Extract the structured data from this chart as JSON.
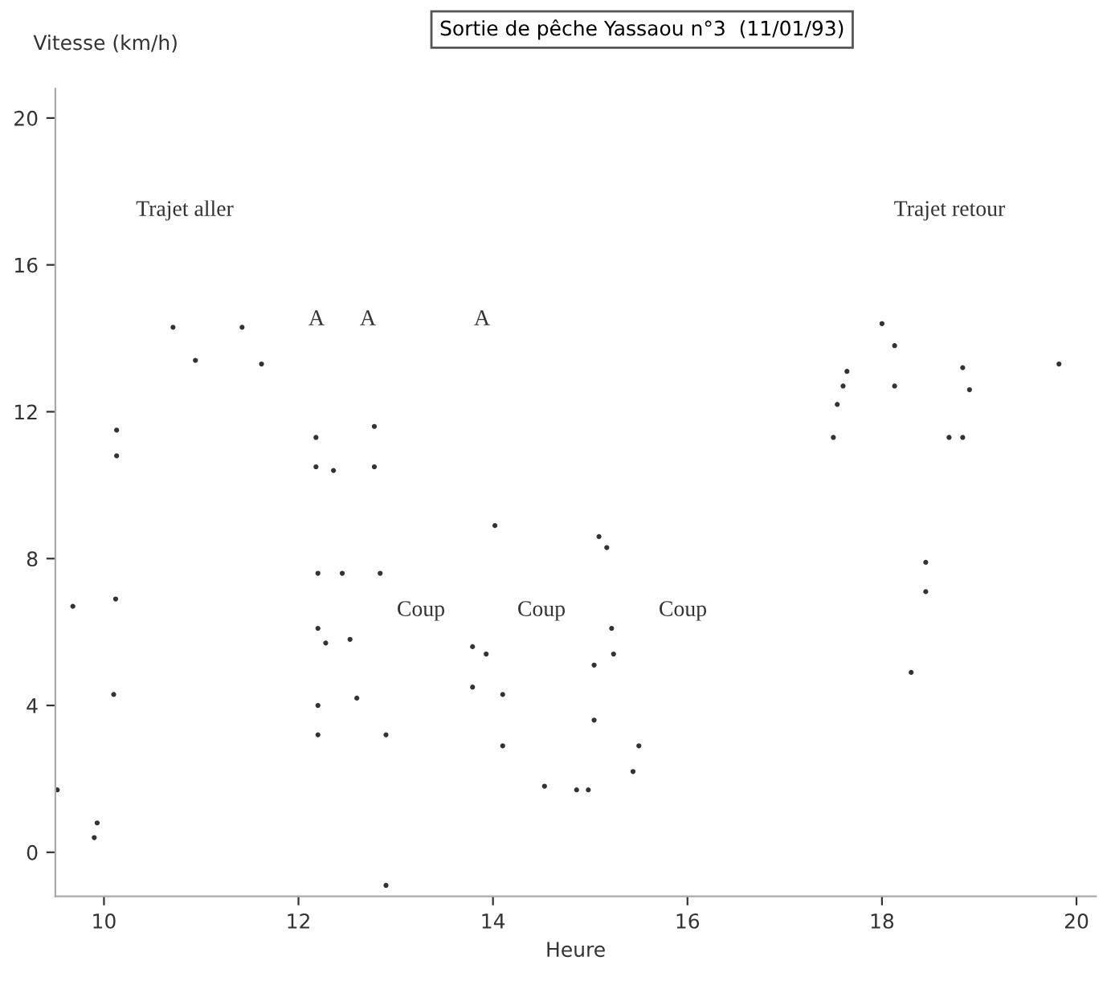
{
  "chart_data": {
    "type": "scatter",
    "title": "Sortie de pêche Yassaou n°3  (11/01/93)",
    "xlabel": "Heure",
    "ylabel": "Vitesse (km/h)",
    "xlim": [
      9.5,
      20.2
    ],
    "ylim": [
      -1.2,
      20.8
    ],
    "xticks": [
      10,
      12,
      14,
      16,
      18,
      20
    ],
    "yticks": [
      0,
      4,
      8,
      12,
      16,
      20
    ],
    "grid": false,
    "marker": "circle",
    "series": [
      {
        "color": "#333333",
        "x": [
          9.52,
          9.68,
          9.93,
          9.9,
          10.1,
          10.12,
          10.13,
          10.13,
          10.71,
          10.94,
          11.42,
          11.62,
          12.18,
          12.18,
          12.36,
          12.78,
          12.78,
          12.2,
          12.45,
          12.84,
          12.2,
          12.28,
          12.53,
          12.2,
          12.2,
          12.9,
          12.6,
          12.9,
          13.79,
          13.79,
          13.93,
          14.02,
          14.1,
          14.1,
          14.53,
          14.86,
          14.98,
          15.09,
          15.17,
          15.04,
          15.22,
          15.24,
          15.04,
          15.5,
          15.44,
          17.5,
          17.54,
          17.6,
          17.64,
          18.0,
          18.13,
          18.13,
          18.3,
          18.45,
          18.45,
          18.69,
          18.83,
          18.83,
          18.9,
          19.82
        ],
        "values": [
          1.7,
          6.7,
          0.8,
          0.4,
          4.3,
          6.9,
          11.5,
          10.8,
          14.3,
          13.4,
          14.3,
          13.3,
          11.3,
          10.5,
          10.4,
          11.6,
          10.5,
          7.6,
          7.6,
          7.6,
          6.1,
          5.7,
          5.8,
          4.0,
          3.2,
          3.2,
          4.2,
          -0.9,
          5.6,
          4.5,
          5.4,
          8.9,
          4.3,
          2.9,
          1.8,
          1.7,
          1.7,
          8.6,
          8.3,
          5.1,
          6.1,
          5.4,
          3.6,
          2.9,
          2.2,
          11.3,
          12.2,
          12.7,
          13.1,
          14.4,
          13.8,
          12.7,
          4.9,
          7.9,
          7.1,
          11.3,
          11.3,
          13.2,
          12.6,
          13.3
        ]
      }
    ],
    "annotations": [
      "Trajet aller",
      "Trajet retour",
      "A",
      "A",
      "A",
      "Coup",
      "Coup",
      "Coup"
    ]
  }
}
